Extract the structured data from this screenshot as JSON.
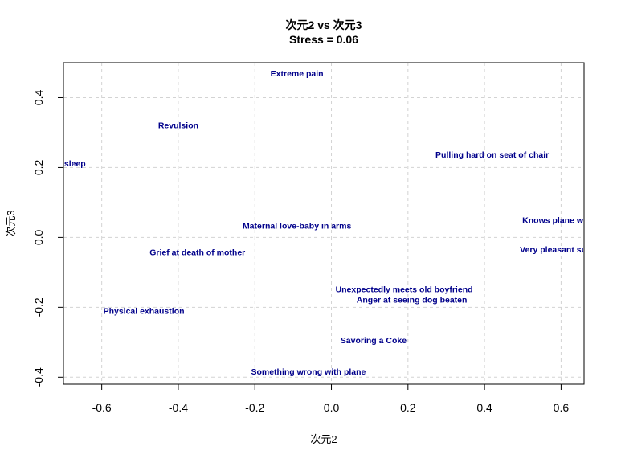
{
  "chart_data": {
    "type": "scatter",
    "title": "次元2 vs 次元3",
    "subtitle": "Stress = 0.06",
    "xlabel": "次元2",
    "ylabel": "次元3",
    "xlim": [
      -0.7,
      0.66
    ],
    "ylim": [
      -0.42,
      0.5
    ],
    "xticks": [
      -0.6,
      -0.4,
      -0.2,
      0.0,
      0.2,
      0.4,
      0.6
    ],
    "xtick_labels": [
      "-0.6",
      "-0.4",
      "-0.2",
      "0.0",
      "0.2",
      "0.4",
      "0.6"
    ],
    "yticks": [
      -0.4,
      -0.2,
      0.0,
      0.2,
      0.4
    ],
    "ytick_labels": [
      "-0.4",
      "-0.2",
      "0.0",
      "0.2",
      "0.4"
    ],
    "grid": true,
    "label_color": "#00008B",
    "points": [
      {
        "label": "Extreme pain",
        "x": -0.09,
        "y": 0.468
      },
      {
        "label": "Revulsion",
        "x": -0.4,
        "y": 0.32
      },
      {
        "label": "Pulling hard on seat of chair",
        "x": 0.42,
        "y": 0.236
      },
      {
        "label": "Light sleep",
        "x": -0.7,
        "y": 0.21
      },
      {
        "label": "Knows plane will crash",
        "x": 0.62,
        "y": 0.048
      },
      {
        "label": "Maternal love-baby in arms",
        "x": -0.09,
        "y": 0.032
      },
      {
        "label": "Very pleasant surprise",
        "x": 0.61,
        "y": -0.036
      },
      {
        "label": "Grief at death of mother",
        "x": -0.35,
        "y": -0.044
      },
      {
        "label": "Unexpectedly meets old boyfriend",
        "x": 0.19,
        "y": -0.15
      },
      {
        "label": "Anger at seeing dog beaten",
        "x": 0.21,
        "y": -0.18
      },
      {
        "label": "Physical exhaustion",
        "x": -0.49,
        "y": -0.212
      },
      {
        "label": "Savoring a Coke",
        "x": 0.11,
        "y": -0.296
      },
      {
        "label": "Something wrong with plane",
        "x": -0.06,
        "y": -0.385
      }
    ]
  }
}
